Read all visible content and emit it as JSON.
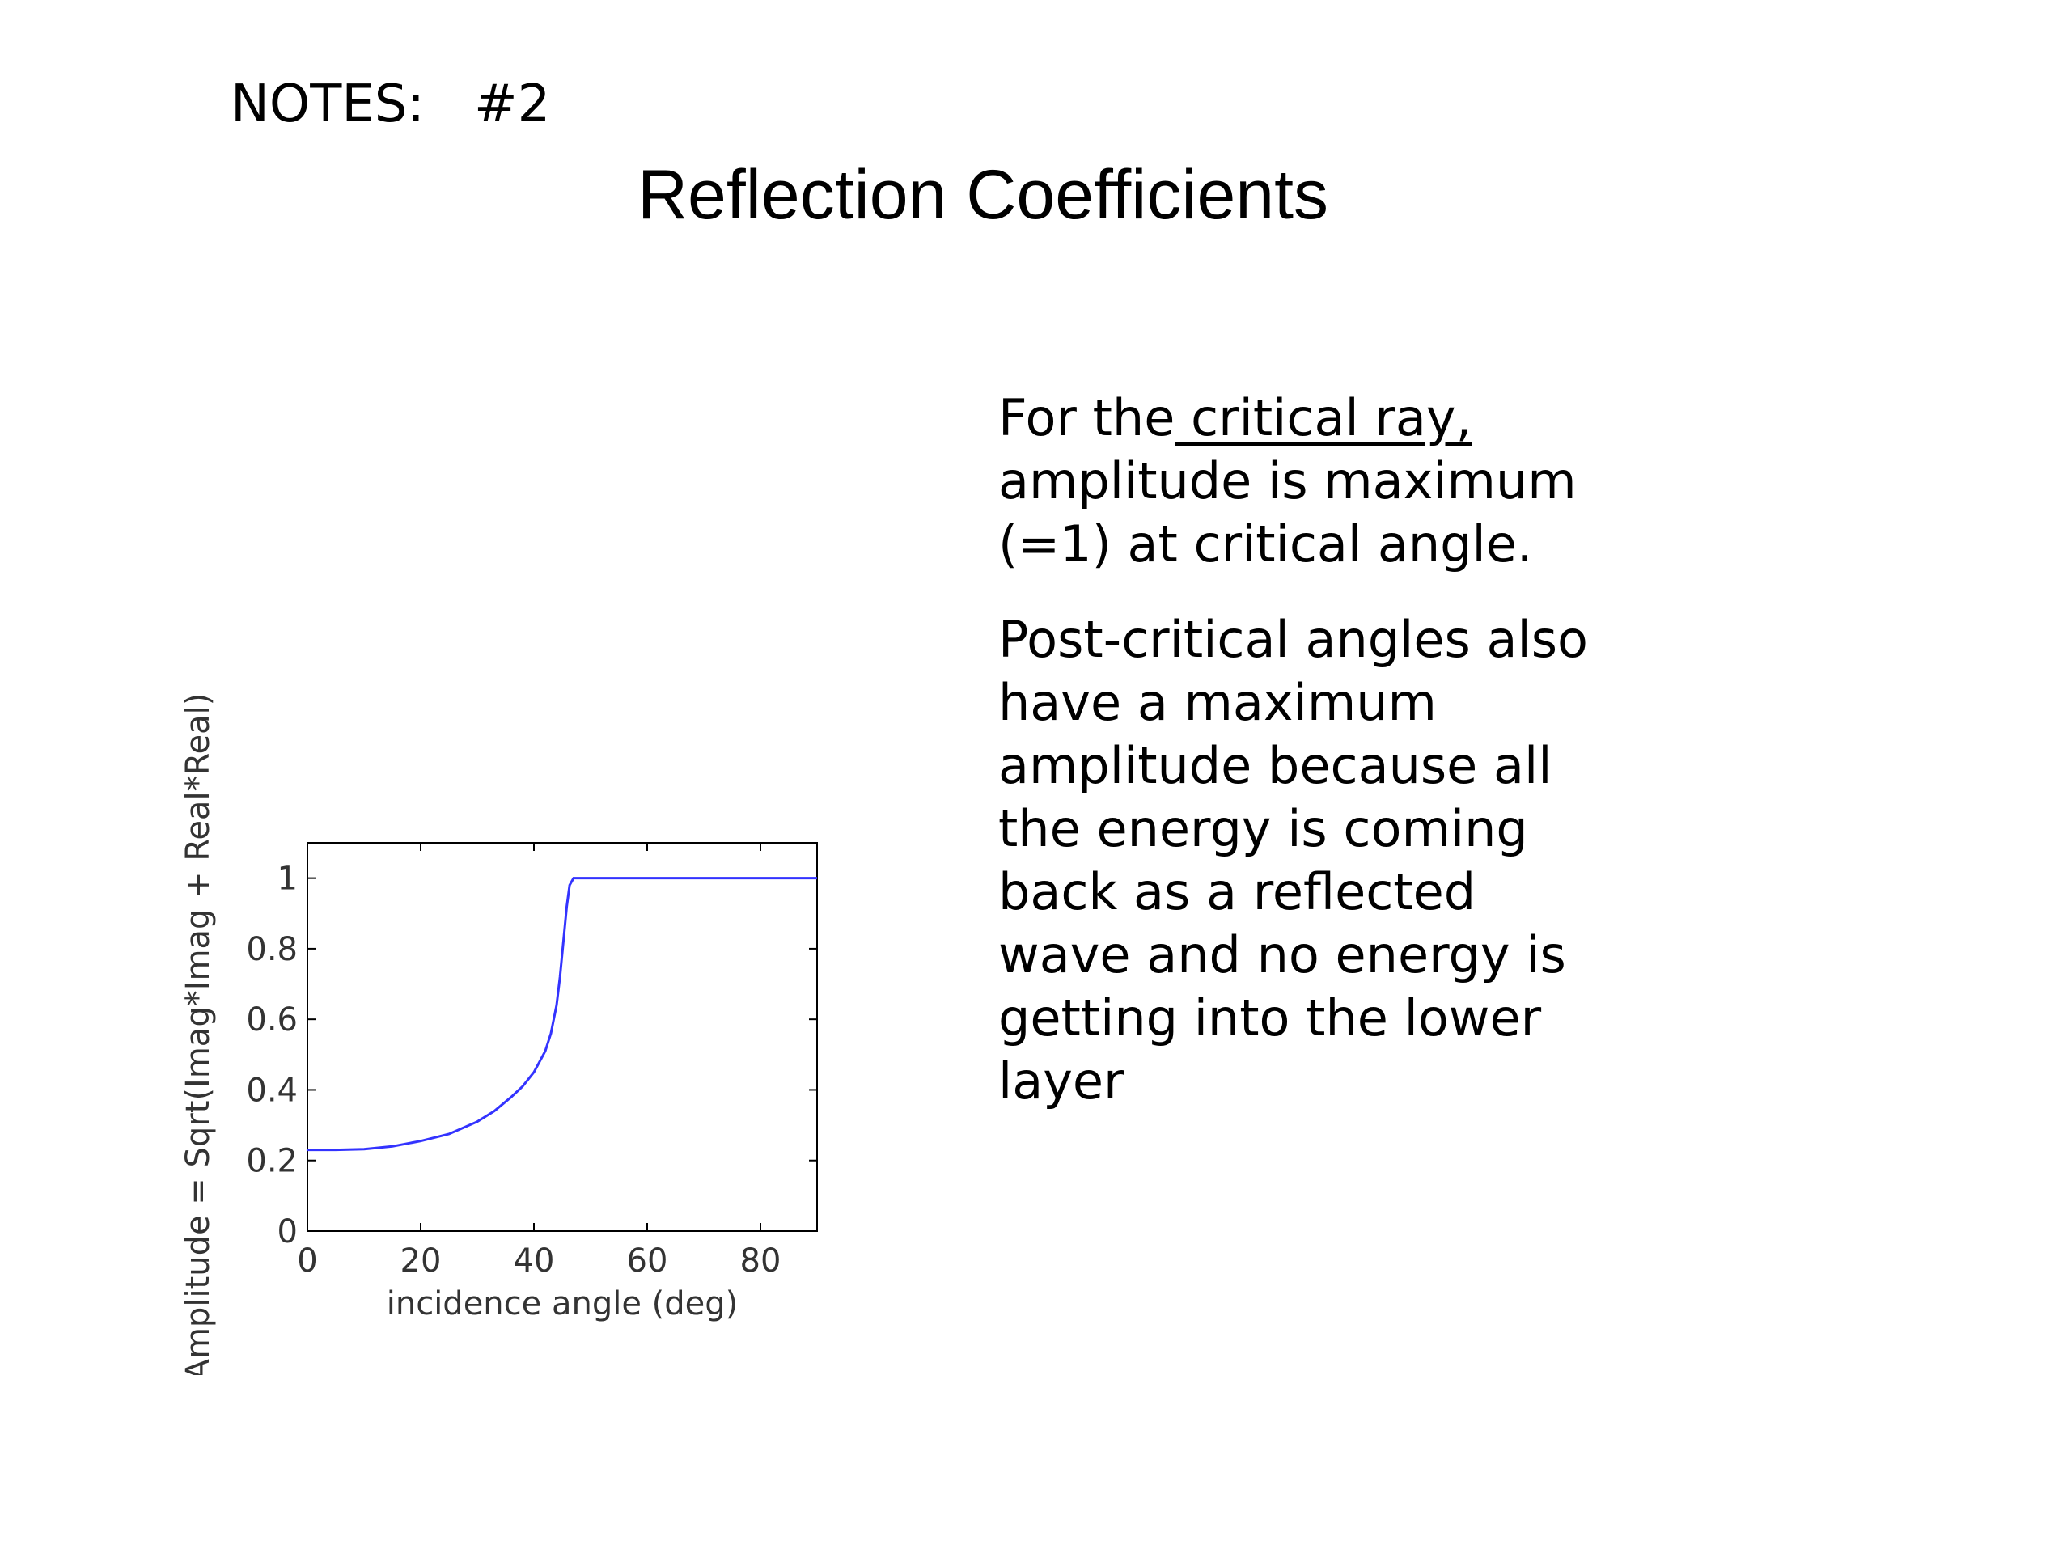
{
  "header": {
    "notes_label": "NOTES:   #2",
    "title": "Reflection Coefficients"
  },
  "notes": {
    "para1_before": "For the",
    "para1_underlined": " critical ray,",
    "para1_after": "amplitude is maximum (=1) at critical angle.",
    "para2": "Post-critical angles also have a maximum amplitude because all the energy is coming back as a reflected wave and no energy is getting into the lower layer"
  },
  "chart_data": {
    "type": "line",
    "xlabel": "incidence angle (deg)",
    "ylabel": "Amplitude = Sqrt(Imag*Imag + Real*Real)",
    "xlim": [
      0,
      90
    ],
    "ylim": [
      0,
      1.1
    ],
    "xticks": [
      0,
      20,
      40,
      60,
      80
    ],
    "xtick_labels": [
      "0",
      "20",
      "40",
      "60",
      "80"
    ],
    "yticks": [
      0,
      0.2,
      0.4,
      0.6,
      0.8,
      1
    ],
    "ytick_labels": [
      "0",
      "0.2",
      "0.4",
      "0.6",
      "0.8",
      "1"
    ],
    "grid": false,
    "line_color": "#3333ff",
    "series": [
      {
        "x": [
          0,
          5,
          10,
          15,
          20,
          25,
          30,
          33,
          36,
          38,
          40,
          42,
          43,
          44,
          44.6,
          45.2,
          45.8,
          46.3,
          47,
          50,
          60,
          70,
          80,
          90
        ],
        "y": [
          0.23,
          0.23,
          0.232,
          0.24,
          0.255,
          0.275,
          0.31,
          0.34,
          0.38,
          0.41,
          0.45,
          0.51,
          0.56,
          0.64,
          0.72,
          0.82,
          0.92,
          0.98,
          1.0,
          1.0,
          1.0,
          1.0,
          1.0,
          1.0
        ]
      }
    ]
  }
}
